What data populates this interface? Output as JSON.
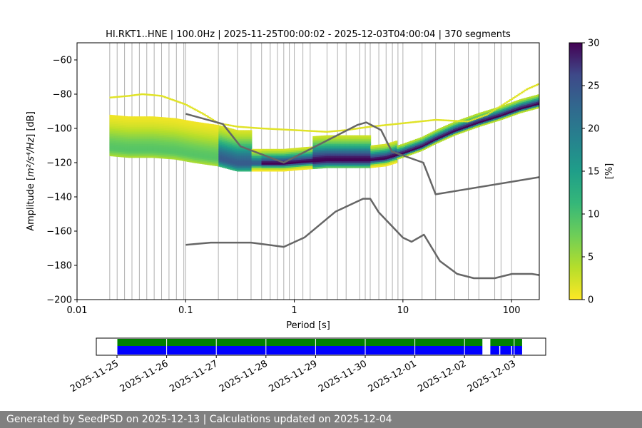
{
  "chart_data": [
    {
      "type": "heatmap",
      "title": "HI.RKT1..HNE | 100.0Hz | 2025-11-25T00:00:02 - 2025-12-03T04:00:04 | 370 segments",
      "xlabel": "Period [s]",
      "ylabel_prefix": "Amplitude [",
      "ylabel_unit": "m²/s⁴/Hz",
      "ylabel_suffix": "] [dB]",
      "x_scale": "log",
      "xlim": [
        0.01,
        180
      ],
      "ylim": [
        -200,
        -50
      ],
      "x_ticks": [
        0.01,
        0.1,
        1,
        10,
        100
      ],
      "x_tick_labels": [
        "0.01",
        "0.1",
        "1",
        "10",
        "100"
      ],
      "y_ticks": [
        -200,
        -180,
        -160,
        -140,
        -120,
        -100,
        -80,
        -60
      ],
      "y_tick_labels": [
        "−200",
        "−180",
        "−160",
        "−140",
        "−120",
        "−100",
        "−80",
        "−60"
      ],
      "grid": "vertical lines at each period bin",
      "colormap": "viridis reversed (yellow = 0, dark purple = 30)",
      "colorbar": {
        "label": "[%]",
        "range": [
          0,
          30
        ],
        "ticks": [
          0,
          5,
          10,
          15,
          20,
          25,
          30
        ],
        "tick_labels": [
          "0",
          "5",
          "10",
          "15",
          "20",
          "25",
          "30"
        ]
      },
      "density_ridge": {
        "description": "mode of the probability density (dB per period)",
        "period": [
          0.02,
          0.03,
          0.05,
          0.08,
          0.12,
          0.2,
          0.3,
          0.5,
          0.8,
          1.2,
          2,
          3,
          5,
          7,
          10,
          15,
          20,
          30,
          50,
          80,
          120,
          180
        ],
        "db": [
          -112,
          -113,
          -113,
          -114,
          -116,
          -118,
          -121,
          -121,
          -121,
          -120,
          -119,
          -119,
          -119,
          -118,
          -115,
          -111,
          -107,
          -102,
          -97,
          -93,
          -89,
          -86
        ]
      },
      "upper_envelope": {
        "period": [
          0.02,
          0.03,
          0.04,
          0.06,
          0.1,
          0.15,
          0.2,
          0.3,
          0.5,
          1.0,
          2.0,
          3.0,
          5,
          10,
          20,
          40,
          60,
          100,
          140,
          180
        ],
        "db": [
          -82,
          -81,
          -80,
          -81,
          -86,
          -92,
          -97,
          -99,
          -100,
          -101,
          -102,
          -101,
          -99,
          -97,
          -95,
          -96,
          -92,
          -83,
          -77,
          -74
        ]
      },
      "noise_models": [
        {
          "curve": "upper",
          "period": [
            0.1,
            0.22,
            0.32,
            0.8,
            3.8,
            4.6,
            6.3,
            7.9,
            15.4,
            20.0,
            180
          ],
          "db": [
            -91.5,
            -97.4,
            -110.5,
            -120.0,
            -98.0,
            -96.5,
            -101.0,
            -113.5,
            -120.0,
            -138.5,
            -128.5
          ]
        },
        {
          "curve": "lower",
          "period": [
            0.1,
            0.17,
            0.4,
            0.8,
            1.24,
            2.4,
            4.3,
            5.0,
            6.0,
            10.0,
            12.0,
            15.6,
            21.9,
            31.6,
            45,
            70,
            101,
            154,
            180
          ],
          "db": [
            -168.0,
            -166.7,
            -166.7,
            -169.2,
            -163.7,
            -148.6,
            -141.1,
            -141.1,
            -149.1,
            -163.8,
            -166.2,
            -162.1,
            -177.5,
            -185.0,
            -187.5,
            -187.5,
            -185.0,
            -185.0,
            -185.7
          ]
        }
      ]
    },
    {
      "type": "timeline",
      "x_tick_labels": [
        "2025-11-25",
        "2025-11-26",
        "2025-11-27",
        "2025-11-28",
        "2025-11-29",
        "2025-11-30",
        "2025-12-01",
        "2025-12-02",
        "2025-12-03"
      ],
      "x_range_days": [
        0,
        9
      ],
      "green_segments_days": [
        [
          0.0,
          7.36
        ],
        [
          7.52,
          8.16
        ]
      ],
      "blue_segments_days": [
        [
          0.0,
          7.36
        ],
        [
          7.52,
          7.7
        ],
        [
          7.72,
          7.94
        ],
        [
          7.96,
          8.16
        ]
      ]
    }
  ],
  "footer": {
    "text": "Generated by SeedPSD on 2025-12-13 | Calculations updated on 2025-12-04"
  },
  "colors": {
    "grid": "#b0b0b0",
    "model_line": "#666666",
    "green_bar": "#008000",
    "blue_bar": "#0000ff"
  }
}
